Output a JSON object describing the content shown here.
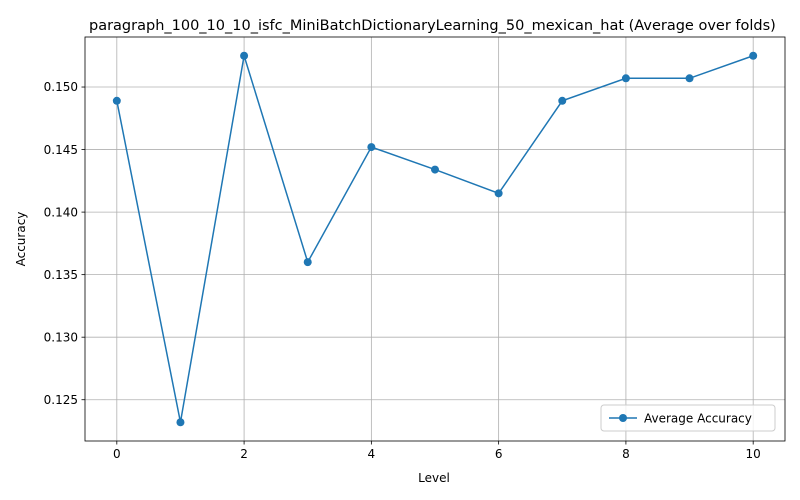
{
  "chart_data": {
    "type": "line",
    "title": "paragraph_100_10_10_isfc_MiniBatchDictionaryLearning_50_mexican_hat (Average over folds)",
    "xlabel": "Level",
    "ylabel": "Accuracy",
    "x": [
      0,
      1,
      2,
      3,
      4,
      5,
      6,
      7,
      8,
      9,
      10
    ],
    "series": [
      {
        "name": "Average Accuracy",
        "values": [
          0.1489,
          0.1232,
          0.1525,
          0.136,
          0.1452,
          0.1434,
          0.1415,
          0.1489,
          0.1507,
          0.1507,
          0.1525
        ],
        "color": "#1f77b4"
      }
    ],
    "xlim": [
      -0.5,
      10.5
    ],
    "ylim": [
      0.1217,
      0.154
    ],
    "xticks": [
      0,
      2,
      4,
      6,
      8,
      10
    ],
    "xtick_labels": [
      "0",
      "2",
      "4",
      "6",
      "8",
      "10"
    ],
    "yticks": [
      0.125,
      0.13,
      0.135,
      0.14,
      0.145,
      0.15
    ],
    "ytick_labels": [
      "0.125",
      "0.130",
      "0.135",
      "0.140",
      "0.145",
      "0.150"
    ],
    "grid": true,
    "legend_position": "lower-right"
  }
}
